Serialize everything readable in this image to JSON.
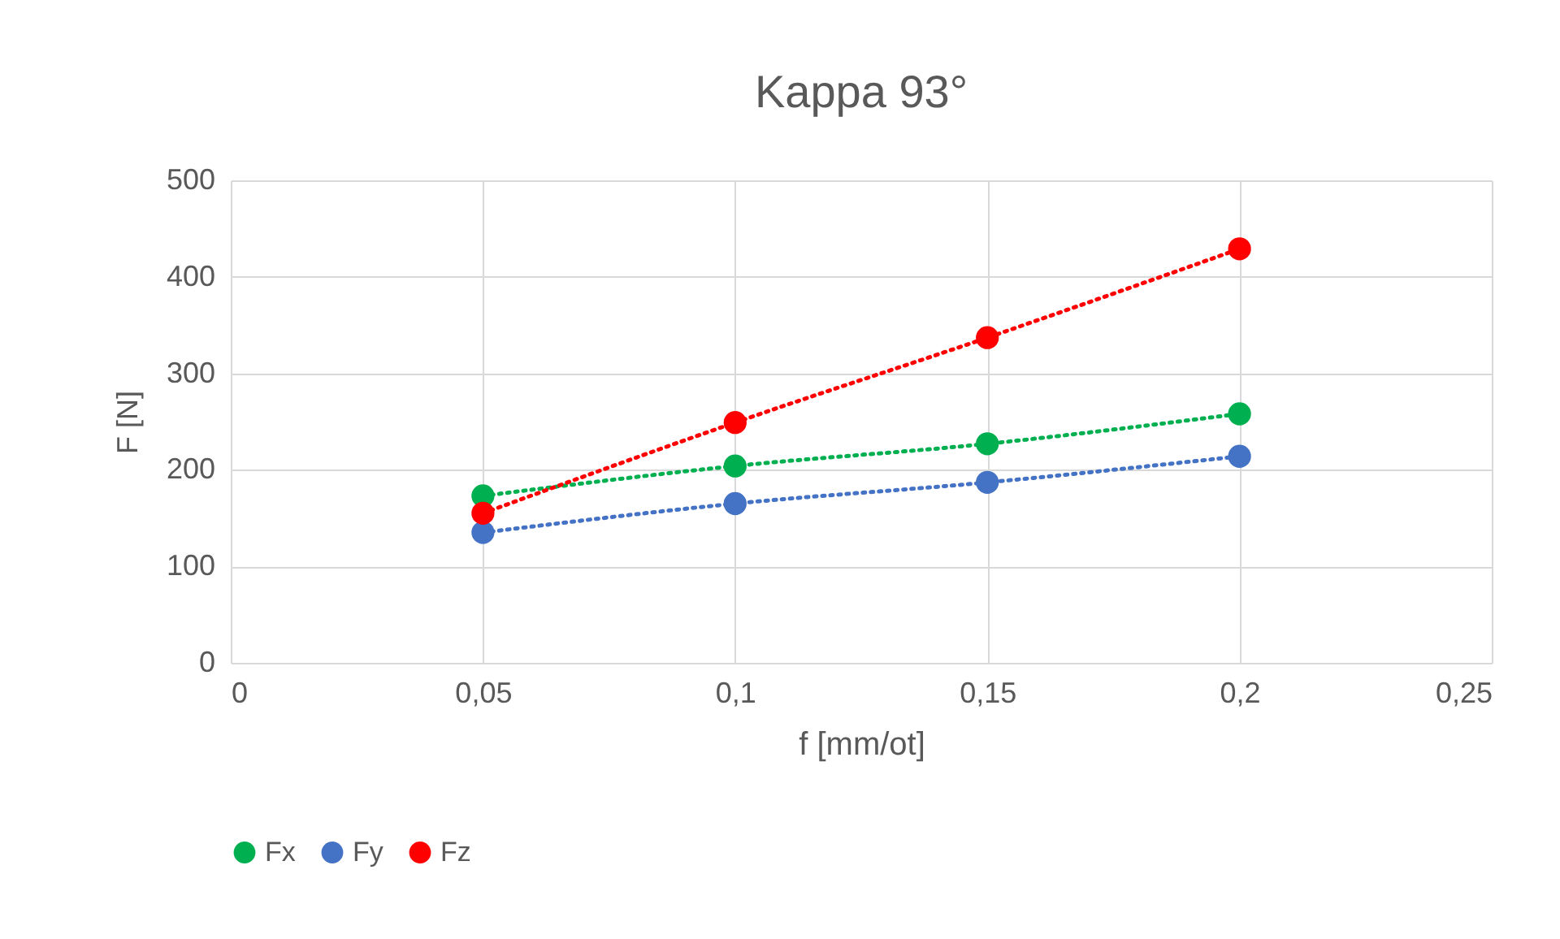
{
  "chart_data": {
    "type": "line",
    "title": "Kappa 93°",
    "xlabel": "f [mm/ot]",
    "ylabel": "F [N]",
    "x": [
      0.05,
      0.1,
      0.15,
      0.2
    ],
    "series": [
      {
        "name": "Fx",
        "color": "#00b050",
        "values": [
          173,
          204,
          227,
          258
        ]
      },
      {
        "name": "Fy",
        "color": "#4472c4",
        "values": [
          135,
          165,
          187,
          214
        ]
      },
      {
        "name": "Fz",
        "color": "#ff0000",
        "values": [
          155,
          249,
          337,
          429
        ]
      }
    ],
    "xlim": [
      0,
      0.25
    ],
    "xticks": [
      {
        "value": 0,
        "label": "0"
      },
      {
        "value": 0.05,
        "label": "0,05"
      },
      {
        "value": 0.1,
        "label": "0,1"
      },
      {
        "value": 0.15,
        "label": "0,15"
      },
      {
        "value": 0.2,
        "label": "0,2"
      },
      {
        "value": 0.25,
        "label": "0,25"
      }
    ],
    "ylim": [
      0,
      500
    ],
    "yticks": [
      0,
      100,
      200,
      300,
      400,
      500
    ],
    "grid": true,
    "legend": "bottom",
    "marker": "circle",
    "line_style": "dotted"
  }
}
